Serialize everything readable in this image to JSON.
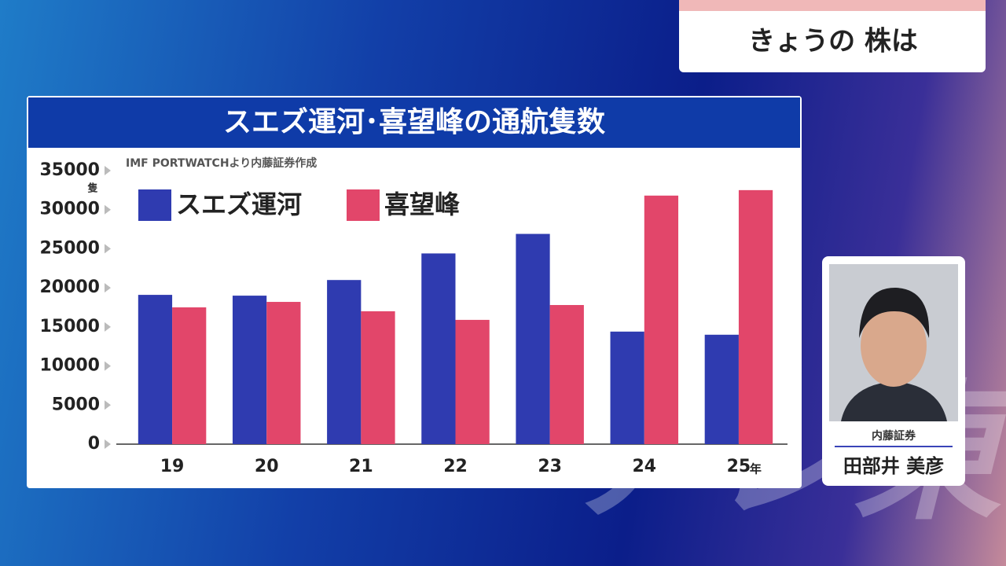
{
  "header": {
    "title": "きょうの 株は"
  },
  "chart_data": {
    "type": "bar",
    "title": "スエズ運河･喜望峰の通航隻数",
    "source": "IMF PORTWATCHより内藤証券作成",
    "y_unit": "隻",
    "x_unit": "年",
    "categories": [
      "19",
      "20",
      "21",
      "22",
      "23",
      "24",
      "25"
    ],
    "series": [
      {
        "name": "スエズ運河",
        "color": "#2f3bb0",
        "values": [
          19100,
          19000,
          21000,
          24400,
          26900,
          14400,
          14000
        ]
      },
      {
        "name": "喜望峰",
        "color": "#e2466a",
        "values": [
          17500,
          18200,
          17000,
          15900,
          17800,
          31800,
          32500
        ]
      }
    ],
    "ylim": [
      0,
      35000
    ],
    "yticks": [
      0,
      5000,
      10000,
      15000,
      20000,
      25000,
      30000,
      35000
    ],
    "grid": false
  },
  "presenter": {
    "company": "内藤証券",
    "name": "田部井 美彦"
  },
  "watermark": "テレ東"
}
